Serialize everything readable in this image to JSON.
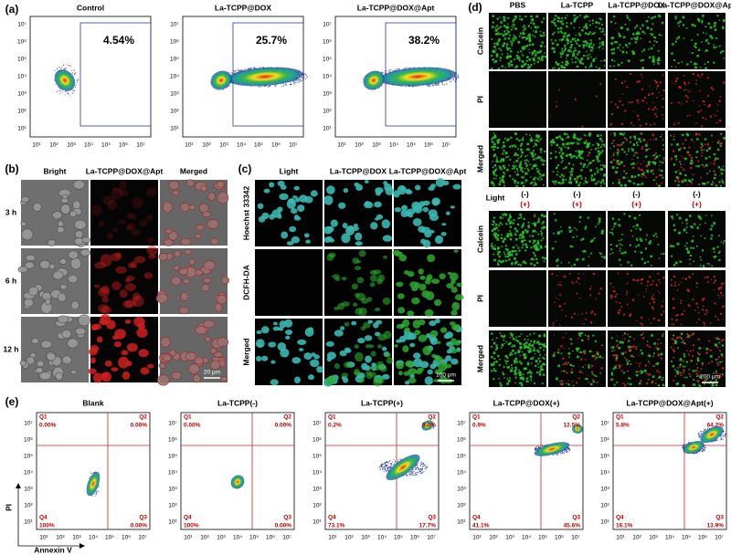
{
  "panels": {
    "a": {
      "label": "(a)",
      "axis_ticks": [
        "10¹",
        "10²",
        "10³",
        "10⁴",
        "10⁵",
        "10⁶",
        "10⁷"
      ],
      "plots": [
        {
          "title": "Control",
          "percent": "4.54%"
        },
        {
          "title": "La-TCPP@DOX",
          "percent": "25.7%"
        },
        {
          "title": "La-TCPP@DOX@Apt",
          "percent": "38.2%"
        }
      ]
    },
    "b": {
      "label": "(b)",
      "columns": [
        "Bright",
        "La-TCPP@DOX@Apt",
        "Merged"
      ],
      "rows": [
        "3 h",
        "6 h",
        "12 h"
      ],
      "scale_bar": "20 μm"
    },
    "c": {
      "label": "(c)",
      "columns": [
        "Light",
        "La-TCPP@DOX",
        "La-TCPP@DOX@Apt"
      ],
      "rows": [
        "Hoechst 33342",
        "DCFH-DA",
        "Merged"
      ],
      "scale_bar": "100 μm"
    },
    "d": {
      "label": "(d)",
      "columns": [
        "PBS",
        "La-TCPP",
        "La-TCPP@DOX",
        "La-TCPP@DOX@Apt"
      ],
      "rows_top": [
        "Calcein",
        "PI",
        "Merged"
      ],
      "light_label": "Light",
      "light": [
        [
          "(-)",
          "(+)"
        ],
        [
          "(-)",
          "(+)"
        ],
        [
          "(-)",
          "(+)"
        ],
        [
          "(-)",
          "(+)"
        ]
      ],
      "rows_bottom": [
        "Calcein",
        "PI",
        "Merged"
      ],
      "scale_bar": "200 μm"
    },
    "e": {
      "label": "(e)",
      "y_label": "PI",
      "x_label": "Annexin V",
      "axis_ticks": [
        "10¹",
        "10²",
        "10³",
        "10⁴",
        "10⁵",
        "10⁶",
        "10⁷"
      ],
      "plots": [
        {
          "title": "Blank",
          "quadrants": [
            {
              "name": "Q1",
              "value": "0.00%"
            },
            {
              "name": "Q2",
              "value": "0.00%"
            },
            {
              "name": "Q3",
              "value": "0.00%"
            },
            {
              "name": "Q4",
              "value": "100%"
            }
          ]
        },
        {
          "title": "La-TCPP(-)",
          "quadrants": [
            {
              "name": "Q1",
              "value": "0.00%"
            },
            {
              "name": "Q2",
              "value": "0.00%"
            },
            {
              "name": "Q3",
              "value": "0.00%"
            },
            {
              "name": "Q4",
              "value": "100%"
            }
          ]
        },
        {
          "title": "La-TCPP(+)",
          "quadrants": [
            {
              "name": "Q1",
              "value": "0.2%"
            },
            {
              "name": "Q2",
              "value": "9.0%"
            },
            {
              "name": "Q3",
              "value": "17.7%"
            },
            {
              "name": "Q4",
              "value": "73.1%"
            }
          ]
        },
        {
          "title": "La-TCPP@DOX(+)",
          "quadrants": [
            {
              "name": "Q1",
              "value": "0.9%"
            },
            {
              "name": "Q2",
              "value": "12.5%"
            },
            {
              "name": "Q3",
              "value": "45.6%"
            },
            {
              "name": "Q4",
              "value": "41.1%"
            }
          ]
        },
        {
          "title": "La-TCPP@DOX@Apt(+)",
          "quadrants": [
            {
              "name": "Q1",
              "value": "5.8%"
            },
            {
              "name": "Q2",
              "value": "64.2%"
            },
            {
              "name": "Q3",
              "value": "13.9%"
            },
            {
              "name": "Q4",
              "value": "16.1%"
            }
          ]
        }
      ]
    }
  }
}
